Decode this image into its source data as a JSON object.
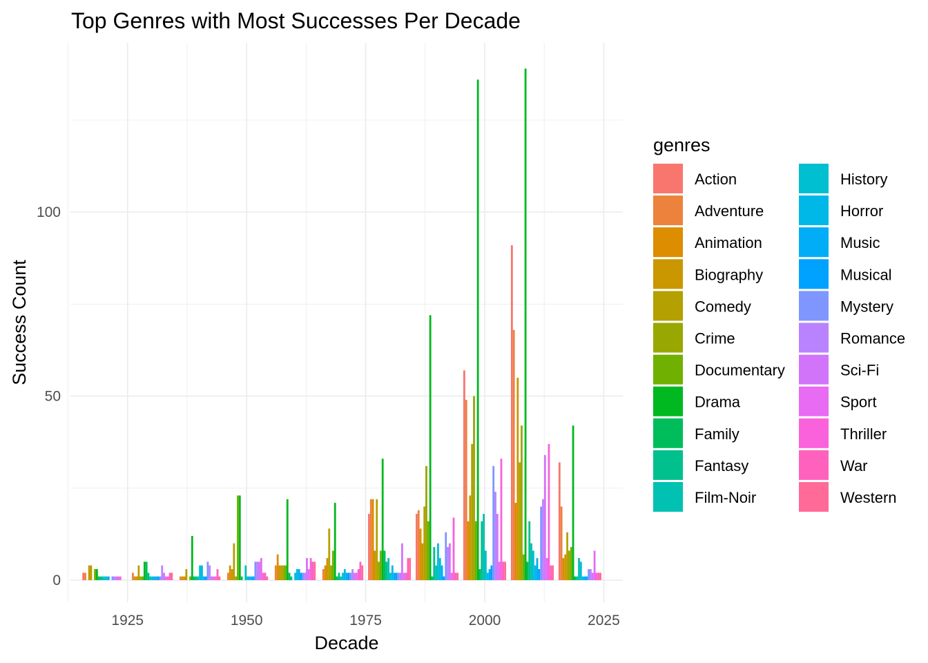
{
  "chart_data": {
    "type": "bar",
    "title": "Top Genres with Most Successes Per Decade",
    "xlabel": "Decade",
    "ylabel": "Success Count",
    "xlim": [
      1913,
      2029
    ],
    "ylim": [
      -6,
      146
    ],
    "x_ticks": [
      "1925",
      "1950",
      "1975",
      "2000",
      "2025"
    ],
    "y_ticks": [
      "0",
      "50",
      "100"
    ],
    "grid": true,
    "legend_title": "genres",
    "legend_position": "right",
    "decades": [
      1920,
      1930,
      1940,
      1950,
      1960,
      1970,
      1980,
      1990,
      2000,
      2010,
      2020
    ],
    "series": [
      {
        "name": "Action",
        "color": "#F8766D",
        "values": [
          2,
          0,
          0,
          0,
          0,
          0,
          18,
          18,
          57,
          91,
          32
        ]
      },
      {
        "name": "Adventure",
        "color": "#EC823C",
        "values": [
          2,
          2,
          1,
          2,
          4,
          3,
          22,
          19,
          49,
          68,
          20
        ]
      },
      {
        "name": "Animation",
        "color": "#DD8D00",
        "values": [
          0,
          1,
          1,
          4,
          7,
          4,
          22,
          14,
          16,
          21,
          6
        ]
      },
      {
        "name": "Biography",
        "color": "#CA9700",
        "values": [
          4,
          1,
          1,
          3,
          4,
          6,
          8,
          10,
          23,
          55,
          7
        ]
      },
      {
        "name": "Comedy",
        "color": "#B4A000",
        "values": [
          4,
          4,
          3,
          10,
          4,
          14,
          22,
          20,
          37,
          32,
          13
        ]
      },
      {
        "name": "Crime",
        "color": "#98A800",
        "values": [
          0,
          1,
          0,
          1,
          4,
          4,
          5,
          31,
          50,
          42,
          8
        ]
      },
      {
        "name": "Documentary",
        "color": "#70B000",
        "values": [
          3,
          1,
          1,
          23,
          4,
          8,
          8,
          16,
          16,
          7,
          9
        ]
      },
      {
        "name": "Drama",
        "color": "#00B81F",
        "values": [
          3,
          5,
          12,
          23,
          22,
          21,
          33,
          72,
          136,
          139,
          42
        ]
      },
      {
        "name": "Family",
        "color": "#00BD5C",
        "values": [
          1,
          5,
          1,
          1,
          2,
          1,
          8,
          1,
          3,
          5,
          1
        ]
      },
      {
        "name": "Fantasy",
        "color": "#00C08D",
        "values": [
          1,
          2,
          1,
          0,
          1,
          2,
          5,
          9,
          16,
          16,
          1
        ]
      },
      {
        "name": "Film-Noir",
        "color": "#00C1B2",
        "values": [
          1,
          1,
          1,
          4,
          0,
          1,
          6,
          4,
          18,
          10,
          6
        ]
      },
      {
        "name": "History",
        "color": "#00BFD1",
        "values": [
          1,
          1,
          4,
          1,
          2,
          2,
          2,
          10,
          8,
          8,
          5
        ]
      },
      {
        "name": "Horror",
        "color": "#00B8E7",
        "values": [
          1,
          1,
          4,
          1,
          3,
          3,
          4,
          6,
          2,
          4,
          1
        ]
      },
      {
        "name": "Music",
        "color": "#00ADF6",
        "values": [
          1,
          1,
          1,
          1,
          3,
          2,
          2,
          4,
          3,
          6,
          1
        ]
      },
      {
        "name": "Musical",
        "color": "#00A2FF",
        "values": [
          0,
          1,
          1,
          1,
          2,
          2,
          2,
          1,
          4,
          3,
          1
        ]
      },
      {
        "name": "Mystery",
        "color": "#7F96FF",
        "values": [
          1,
          1,
          5,
          5,
          2,
          2,
          2,
          13,
          31,
          20,
          3
        ]
      },
      {
        "name": "Romance",
        "color": "#B983FF",
        "values": [
          1,
          4,
          4,
          5,
          2,
          3,
          2,
          9,
          24,
          22,
          3
        ]
      },
      {
        "name": "Sci-Fi",
        "color": "#D274FA",
        "values": [
          1,
          2,
          1,
          5,
          6,
          2,
          10,
          10,
          18,
          34,
          2
        ]
      },
      {
        "name": "Sport",
        "color": "#E76BF3",
        "values": [
          1,
          1,
          1,
          6,
          3,
          2,
          2,
          2,
          5,
          6,
          8
        ]
      },
      {
        "name": "Thriller",
        "color": "#FA62DB",
        "values": [
          1,
          1,
          1,
          2,
          6,
          3,
          2,
          17,
          33,
          37,
          2
        ]
      },
      {
        "name": "War",
        "color": "#FF62BC",
        "values": [
          0,
          2,
          3,
          2,
          5,
          5,
          6,
          2,
          5,
          4,
          2
        ]
      },
      {
        "name": "Western",
        "color": "#FF6A98",
        "values": [
          0,
          2,
          1,
          1,
          5,
          4,
          6,
          2,
          5,
          4,
          2
        ]
      }
    ]
  }
}
